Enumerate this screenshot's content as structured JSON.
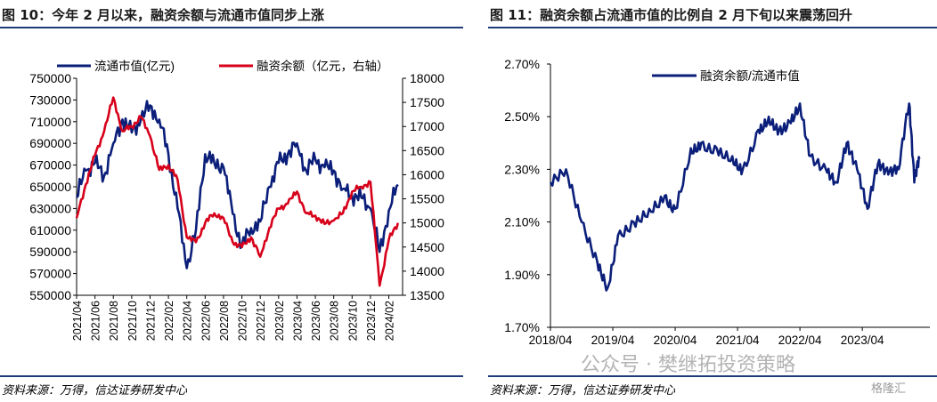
{
  "left_panel": {
    "title": "图 10：今年 2 月以来，融资余额与流通市值同步上涨",
    "source": "资料来源：万得，信达证券研发中心"
  },
  "right_panel": {
    "title": "图 11：融资余额占流通市值的比例自 2 月下旬以来震荡回升",
    "source": "资料来源：万得，信达证券研发中心"
  },
  "watermark": {
    "text": "公众号 · 樊继拓投资策略",
    "logo_text": "格隆汇"
  },
  "chart_data": [
    {
      "type": "line",
      "legend_position": "top",
      "grid": false,
      "x_labels": [
        "2021/04",
        "2021/06",
        "2021/08",
        "2021/10",
        "2021/12",
        "2022/02",
        "2022/04",
        "2022/06",
        "2022/08",
        "2022/10",
        "2022/12",
        "2023/02",
        "2023/04",
        "2023/06",
        "2023/08",
        "2023/10",
        "2023/12",
        "2024/02"
      ],
      "ylim_left": [
        550000,
        750000
      ],
      "yticks_left": [
        "750000",
        "730000",
        "710000",
        "690000",
        "670000",
        "650000",
        "630000",
        "610000",
        "590000",
        "570000",
        "550000"
      ],
      "ylim_right": [
        13500,
        18000
      ],
      "yticks_right": [
        "18000",
        "17500",
        "17000",
        "16500",
        "16000",
        "15500",
        "15000",
        "14500",
        "14000",
        "13500"
      ],
      "series": [
        {
          "name": "流通市值(亿元)",
          "axis": "left",
          "color": "#0b1f7a",
          "dates": [
            "2021/04",
            "2021/05",
            "2021/06",
            "2021/07",
            "2021/08",
            "2021/09",
            "2021/10",
            "2021/11",
            "2021/12",
            "2022/01",
            "2022/02",
            "2022/03",
            "2022/04",
            "2022/05",
            "2022/06",
            "2022/07",
            "2022/08",
            "2022/09",
            "2022/10",
            "2022/11",
            "2022/12",
            "2023/01",
            "2023/02",
            "2023/03",
            "2023/04",
            "2023/05",
            "2023/06",
            "2023/07",
            "2023/08",
            "2023/09",
            "2023/10",
            "2023/11",
            "2023/12",
            "2024/01",
            "2024/02",
            "2024/03"
          ],
          "values": [
            640000,
            665000,
            672000,
            660000,
            690000,
            712000,
            700000,
            712000,
            725000,
            712000,
            680000,
            630000,
            575000,
            610000,
            680000,
            672000,
            668000,
            625000,
            595000,
            612000,
            618000,
            650000,
            672000,
            680000,
            690000,
            665000,
            675000,
            668000,
            665000,
            648000,
            642000,
            640000,
            630000,
            590000,
            628000,
            652000
          ]
        },
        {
          "name": "融资余额（亿元，右轴）",
          "axis": "right",
          "color": "#d7001a",
          "dates": [
            "2021/04",
            "2021/05",
            "2021/06",
            "2021/07",
            "2021/08",
            "2021/09",
            "2021/10",
            "2021/11",
            "2021/12",
            "2022/01",
            "2022/02",
            "2022/03",
            "2022/04",
            "2022/05",
            "2022/06",
            "2022/07",
            "2022/08",
            "2022/09",
            "2022/10",
            "2022/11",
            "2022/12",
            "2023/01",
            "2023/02",
            "2023/03",
            "2023/04",
            "2023/05",
            "2023/06",
            "2023/07",
            "2023/08",
            "2023/09",
            "2023/10",
            "2023/11",
            "2023/12",
            "2024/01",
            "2024/02",
            "2024/03"
          ],
          "values": [
            15100,
            15800,
            16400,
            16900,
            17600,
            16900,
            17000,
            17200,
            16800,
            16100,
            16200,
            15900,
            14700,
            14600,
            15000,
            15200,
            15100,
            14600,
            14500,
            14700,
            14300,
            14900,
            15300,
            15400,
            15650,
            15200,
            15150,
            14980,
            15050,
            15200,
            15650,
            15750,
            15850,
            13700,
            14650,
            15000
          ]
        }
      ]
    },
    {
      "type": "line",
      "legend_position": "top",
      "grid": false,
      "x_labels": [
        "2018/04",
        "2019/04",
        "2020/04",
        "2021/04",
        "2022/04",
        "2023/04"
      ],
      "ylim": [
        1.7,
        2.7
      ],
      "yticks": [
        "2.70%",
        "2.50%",
        "2.30%",
        "2.10%",
        "1.90%",
        "1.70%"
      ],
      "series": [
        {
          "name": "融资余额/流通市值",
          "color": "#0b1f7a",
          "dates": [
            "2018/04",
            "2018/07",
            "2018/10",
            "2019/01",
            "2019/03",
            "2019/05",
            "2019/08",
            "2019/11",
            "2020/02",
            "2020/04",
            "2020/07",
            "2020/09",
            "2020/12",
            "2021/03",
            "2021/05",
            "2021/08",
            "2021/10",
            "2021/12",
            "2022/02",
            "2022/04",
            "2022/06",
            "2022/09",
            "2022/11",
            "2023/01",
            "2023/03",
            "2023/05",
            "2023/07",
            "2023/09",
            "2023/11",
            "2024/01",
            "2024/02",
            "2024/03"
          ],
          "values": [
            2.25,
            2.3,
            2.1,
            1.95,
            1.85,
            2.05,
            2.1,
            2.15,
            2.2,
            2.15,
            2.38,
            2.4,
            2.38,
            2.35,
            2.3,
            2.45,
            2.5,
            2.45,
            2.48,
            2.55,
            2.35,
            2.3,
            2.25,
            2.4,
            2.3,
            2.15,
            2.32,
            2.28,
            2.3,
            2.55,
            2.25,
            2.34
          ]
        }
      ]
    }
  ]
}
